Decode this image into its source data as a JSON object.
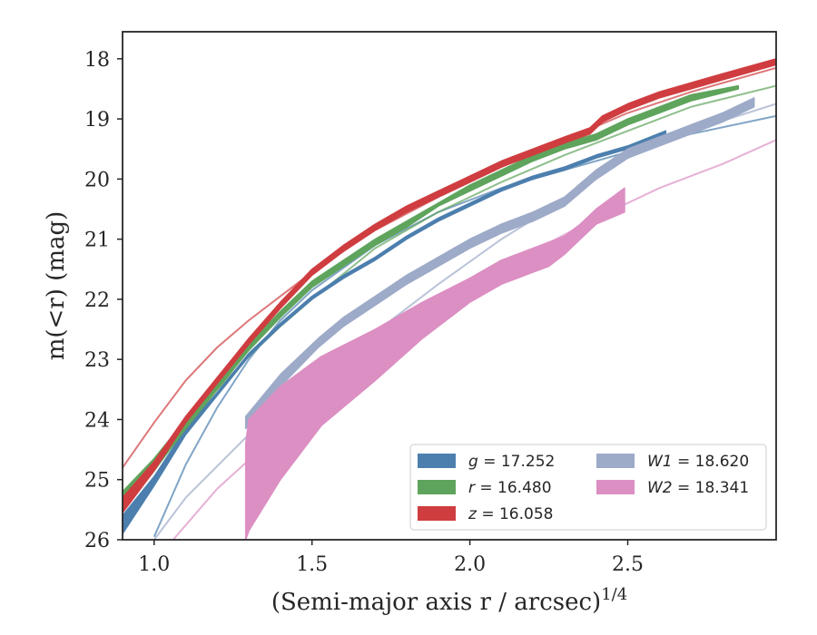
{
  "chart_data": {
    "type": "line",
    "xlabel": "(Semi-major axis r / arcsec)",
    "xlabel_super": "1/4",
    "ylabel": "m(<r) (mag)",
    "xlim": [
      0.9,
      2.97
    ],
    "ylim": [
      26,
      17.55
    ],
    "y_inverted": true,
    "grid": false,
    "legend_placement": "lower-right",
    "x_ticks": [
      1.0,
      1.5,
      2.0,
      2.5
    ],
    "x_tick_labels": [
      "1.0",
      "1.5",
      "2.0",
      "2.5"
    ],
    "y_ticks": [
      18,
      19,
      20,
      21,
      22,
      23,
      24,
      25,
      26
    ],
    "y_tick_labels": [
      "18",
      "19",
      "20",
      "21",
      "22",
      "23",
      "24",
      "25",
      "26"
    ],
    "series": [
      {
        "name": "g",
        "value": "17.252",
        "color": "#4c7fae",
        "model_x": [
          1.0,
          1.1,
          1.2,
          1.3,
          1.4,
          1.5,
          1.7,
          1.9,
          2.1,
          2.3,
          2.5,
          2.7,
          2.97
        ],
        "model_y": [
          25.95,
          24.75,
          23.8,
          23.0,
          22.35,
          21.85,
          21.1,
          20.55,
          20.15,
          19.85,
          19.55,
          19.25,
          18.95
        ],
        "data_x": [
          0.9,
          1.0,
          1.1,
          1.2,
          1.3,
          1.4,
          1.5,
          1.6,
          1.7,
          1.8,
          1.9,
          2.0,
          2.1,
          2.2,
          2.3,
          2.4,
          2.5,
          2.62
        ],
        "data_y_low": [
          25.9,
          25.1,
          24.25,
          23.6,
          22.95,
          22.45,
          22.0,
          21.65,
          21.35,
          21.0,
          20.7,
          20.45,
          20.2,
          20.0,
          19.85,
          19.65,
          19.5,
          19.25
        ],
        "data_y_high": [
          25.6,
          24.95,
          24.15,
          23.55,
          22.9,
          22.4,
          21.95,
          21.6,
          21.3,
          20.95,
          20.65,
          20.4,
          20.15,
          19.95,
          19.8,
          19.6,
          19.45,
          19.2
        ]
      },
      {
        "name": "r",
        "value": "16.480",
        "color": "#5fa45c",
        "model_x": [
          0.9,
          1.0,
          1.1,
          1.2,
          1.3,
          1.4,
          1.5,
          1.7,
          1.9,
          2.1,
          2.3,
          2.5,
          2.7,
          2.97
        ],
        "model_y": [
          25.5,
          24.85,
          24.1,
          23.5,
          22.95,
          22.45,
          22.0,
          21.15,
          20.55,
          20.05,
          19.6,
          19.2,
          18.8,
          18.45
        ],
        "data_x": [
          0.9,
          1.0,
          1.1,
          1.2,
          1.3,
          1.4,
          1.5,
          1.6,
          1.7,
          1.8,
          1.9,
          2.0,
          2.1,
          2.2,
          2.3,
          2.4,
          2.5,
          2.6,
          2.7,
          2.85
        ],
        "data_y_low": [
          25.5,
          24.85,
          24.15,
          23.5,
          22.85,
          22.3,
          21.8,
          21.45,
          21.1,
          20.8,
          20.45,
          20.2,
          19.95,
          19.7,
          19.5,
          19.35,
          19.1,
          18.9,
          18.7,
          18.5
        ],
        "data_y_high": [
          25.2,
          24.65,
          24.0,
          23.4,
          22.75,
          22.2,
          21.7,
          21.35,
          21.0,
          20.7,
          20.4,
          20.1,
          19.85,
          19.6,
          19.4,
          19.25,
          19.0,
          18.8,
          18.6,
          18.45
        ]
      },
      {
        "name": "z",
        "value": "16.058",
        "color": "#cf3d40",
        "model_x": [
          0.9,
          1.0,
          1.1,
          1.2,
          1.3,
          1.4,
          1.5,
          1.7,
          1.9,
          2.1,
          2.3,
          2.5,
          2.7,
          2.97
        ],
        "model_y": [
          24.8,
          24.05,
          23.35,
          22.8,
          22.35,
          21.95,
          21.55,
          20.85,
          20.3,
          19.8,
          19.35,
          18.9,
          18.55,
          18.15
        ],
        "data_x": [
          0.9,
          1.0,
          1.1,
          1.2,
          1.3,
          1.4,
          1.5,
          1.6,
          1.7,
          1.8,
          1.9,
          2.0,
          2.1,
          2.2,
          2.3,
          2.38,
          2.42,
          2.5,
          2.6,
          2.7,
          2.8,
          2.97
        ],
        "data_y_low": [
          25.55,
          24.85,
          24.05,
          23.4,
          22.75,
          22.15,
          21.6,
          21.2,
          20.85,
          20.55,
          20.3,
          20.05,
          19.8,
          19.6,
          19.4,
          19.25,
          19.05,
          18.85,
          18.65,
          18.5,
          18.35,
          18.1
        ],
        "data_y_high": [
          25.3,
          24.7,
          23.95,
          23.3,
          22.65,
          22.05,
          21.5,
          21.1,
          20.75,
          20.45,
          20.2,
          19.95,
          19.7,
          19.5,
          19.3,
          19.15,
          18.95,
          18.75,
          18.55,
          18.4,
          18.25,
          18.0
        ]
      },
      {
        "name": "W1",
        "value": "18.620",
        "color": "#9daac8",
        "model_x": [
          1.0,
          1.1,
          1.3,
          1.5,
          1.7,
          1.9,
          2.1,
          2.3,
          2.5,
          2.7,
          2.97
        ],
        "model_y": [
          26.0,
          25.3,
          24.25,
          23.4,
          22.55,
          21.75,
          21.0,
          20.35,
          19.65,
          19.2,
          18.75
        ],
        "data_x": [
          1.29,
          1.4,
          1.52,
          1.6,
          1.7,
          1.8,
          1.9,
          2.0,
          2.1,
          2.2,
          2.3,
          2.4,
          2.5,
          2.6,
          2.7,
          2.8,
          2.9
        ],
        "data_y_low": [
          24.15,
          23.45,
          22.8,
          22.45,
          22.1,
          21.75,
          21.45,
          21.15,
          20.9,
          20.7,
          20.45,
          20.0,
          19.65,
          19.45,
          19.25,
          19.05,
          18.8
        ],
        "data_y_high": [
          23.95,
          23.25,
          22.65,
          22.3,
          21.95,
          21.6,
          21.3,
          21.0,
          20.75,
          20.55,
          20.3,
          19.85,
          19.5,
          19.3,
          19.1,
          18.9,
          18.65
        ]
      },
      {
        "name": "W2",
        "value": "18.341",
        "color": "#dc8fc3",
        "model_x": [
          1.06,
          1.2,
          1.4,
          1.6,
          1.8,
          2.0,
          2.2,
          2.4,
          2.6,
          2.8,
          2.97
        ],
        "model_y": [
          26.0,
          25.15,
          24.2,
          23.35,
          22.55,
          21.85,
          21.2,
          20.65,
          20.15,
          19.75,
          19.35
        ],
        "data_x": [
          1.29,
          1.3,
          1.4,
          1.53,
          1.7,
          1.85,
          2.0,
          2.1,
          2.2,
          2.25,
          2.3,
          2.35,
          2.4,
          2.49
        ],
        "data_y_low": [
          26.0,
          25.85,
          25.0,
          24.1,
          23.35,
          22.65,
          22.05,
          21.75,
          21.55,
          21.45,
          21.25,
          21.0,
          20.75,
          20.55
        ],
        "data_y_high": [
          24.4,
          24.0,
          23.45,
          22.95,
          22.5,
          22.05,
          21.65,
          21.35,
          21.15,
          21.05,
          20.95,
          20.75,
          20.5,
          20.15
        ]
      }
    ]
  }
}
